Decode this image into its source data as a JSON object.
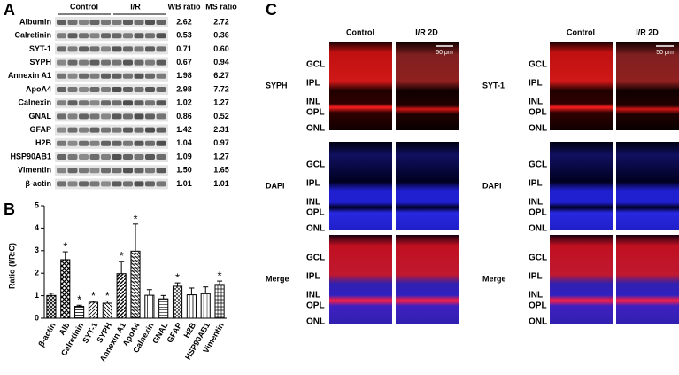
{
  "panel_labels": {
    "a": "A",
    "b": "B",
    "c": "C"
  },
  "panel_a": {
    "headers": {
      "control": "Control",
      "ir": "I/R",
      "wb": "WB ratio",
      "ms": "MS ratio"
    },
    "rows": [
      {
        "protein": "Albumin",
        "wb": "2.62",
        "ms": "2.72"
      },
      {
        "protein": "Calretinin",
        "wb": "0.53",
        "ms": "0.36"
      },
      {
        "protein": "SYT-1",
        "wb": "0.71",
        "ms": "0.60"
      },
      {
        "protein": "SYPH",
        "wb": "0.67",
        "ms": "0.94"
      },
      {
        "protein": "Annexin A1",
        "wb": "1.98",
        "ms": "6.27"
      },
      {
        "protein": "ApoA4",
        "wb": "2.98",
        "ms": "7.72"
      },
      {
        "protein": "Calnexin",
        "wb": "1.02",
        "ms": "1.27"
      },
      {
        "protein": "GNAL",
        "wb": "0.86",
        "ms": "0.52"
      },
      {
        "protein": "GFAP",
        "wb": "1.42",
        "ms": "2.31"
      },
      {
        "protein": "H2B",
        "wb": "1.04",
        "ms": "0.97"
      },
      {
        "protein": "HSP90AB1",
        "wb": "1.09",
        "ms": "1.27"
      },
      {
        "protein": "Vimentin",
        "wb": "1.50",
        "ms": "1.65"
      },
      {
        "protein": "β-actin",
        "wb": "1.01",
        "ms": "1.01"
      }
    ]
  },
  "chart_data": {
    "type": "bar",
    "y_label": "Ratio (I/R:C)",
    "categories": [
      "β-actin",
      "Alb",
      "Calretinin",
      "SYT-1",
      "SYPH",
      "Annexin A1",
      "ApoA4",
      "Calnexin",
      "GNAL",
      "GFAP",
      "H2B",
      "HSP90AB1",
      "Vimentin"
    ],
    "values": [
      1.01,
      2.6,
      0.53,
      0.71,
      0.67,
      1.98,
      2.98,
      1.02,
      0.86,
      1.42,
      1.04,
      1.09,
      1.5
    ],
    "errors": [
      0.1,
      0.35,
      0.05,
      0.05,
      0.1,
      0.55,
      1.2,
      0.25,
      0.15,
      0.15,
      0.3,
      0.3,
      0.15
    ],
    "significance": [
      null,
      "*",
      "*",
      "*",
      "*",
      "*",
      "*",
      null,
      null,
      "*",
      null,
      null,
      "*"
    ],
    "color": "#000000",
    "ylim": [
      0,
      5
    ],
    "yticks": [
      0,
      1,
      2,
      3,
      4,
      5
    ]
  },
  "panel_c": {
    "layers": [
      "GCL",
      "IPL",
      "INL",
      "OPL",
      "ONL"
    ],
    "scale_bar": "50 μm",
    "groups": [
      {
        "columns": [
          "Control",
          "I/R 2D"
        ],
        "stains": [
          "SYPH",
          "DAPI",
          "Merge"
        ]
      },
      {
        "columns": [
          "Control",
          "I/R 2D"
        ],
        "stains": [
          "SYT-1",
          "DAPI",
          "Merge"
        ]
      }
    ]
  }
}
